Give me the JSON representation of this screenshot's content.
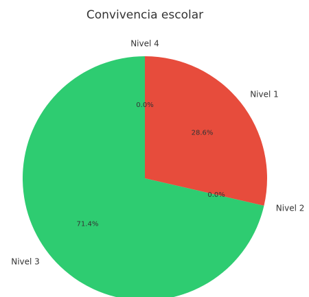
{
  "chart_data": {
    "type": "pie",
    "title": "Convivencia escolar",
    "categories": [
      "Nivel 1",
      "Nivel 2",
      "Nivel 3",
      "Nivel 4"
    ],
    "values": [
      28.6,
      0.0,
      71.4,
      0.0
    ],
    "value_labels": [
      "28.6%",
      "0.0%",
      "71.4%",
      "0.0%"
    ],
    "colors": [
      "#e74c3c",
      "#3498db",
      "#2ecc71",
      "#f1c40f"
    ]
  }
}
